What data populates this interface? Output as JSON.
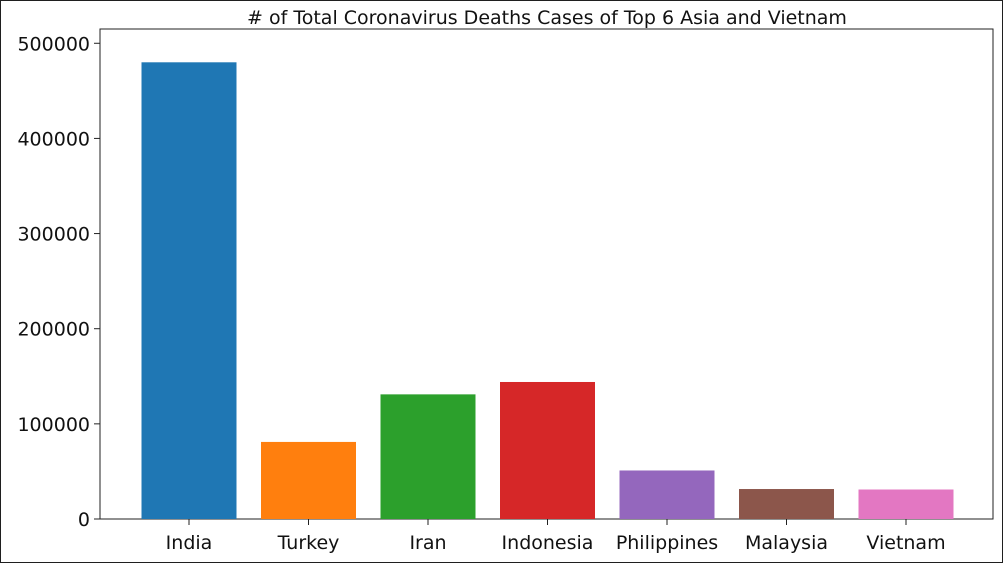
{
  "chart_data": {
    "type": "bar",
    "title": "# of Total Coronavirus Deaths Cases of Top 6 Asia and Vietnam",
    "xlabel": "",
    "ylabel": "",
    "categories": [
      "India",
      "Turkey",
      "Iran",
      "Indonesia",
      "Philippines",
      "Malaysia",
      "Vietnam"
    ],
    "values": [
      480000,
      81000,
      131000,
      144000,
      51000,
      31500,
      31000
    ],
    "colors": [
      "#1f77b4",
      "#ff7f0e",
      "#2ca02c",
      "#d62728",
      "#9467bd",
      "#8c564b",
      "#e377c2"
    ],
    "ylim": [
      0,
      515000
    ],
    "yticks": [
      0,
      100000,
      200000,
      300000,
      400000,
      500000
    ],
    "ytick_labels": [
      "0",
      "100000",
      "200000",
      "300000",
      "400000",
      "500000"
    ],
    "grid": false,
    "legend": "none"
  }
}
